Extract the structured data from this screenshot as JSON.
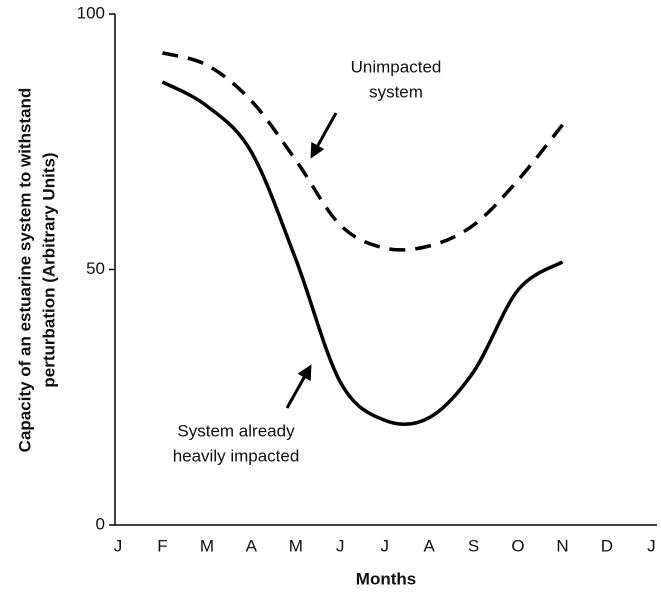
{
  "chart_data": {
    "type": "line",
    "xlabel": "Months",
    "ylabel": [
      "Capacity of an estuarine system to withstand",
      "perturbation (Arbitrary Units)"
    ],
    "categories": [
      "J",
      "F",
      "M",
      "A",
      "M",
      "J",
      "J",
      "A",
      "S",
      "O",
      "N",
      "D",
      "J"
    ],
    "series": [
      {
        "color": "#000000",
        "dash": true,
        "values": [
          null,
          92.4,
          90,
          83,
          71.4,
          58.7,
          54.2,
          54.6,
          58.7,
          67.5,
          78.3,
          null,
          null
        ]
      },
      {
        "color": "#000000",
        "dash": false,
        "values": [
          null,
          86.7,
          82,
          73,
          52,
          28,
          20.5,
          21,
          30,
          46,
          51.5,
          null,
          null
        ]
      }
    ],
    "annotations": [
      {
        "lines": [
          "Unimpacted",
          "system"
        ]
      },
      {
        "lines": [
          "System already",
          "heavily impacted"
        ]
      }
    ],
    "ylim": [
      0,
      100
    ],
    "yticks": [
      0,
      50,
      100
    ]
  }
}
